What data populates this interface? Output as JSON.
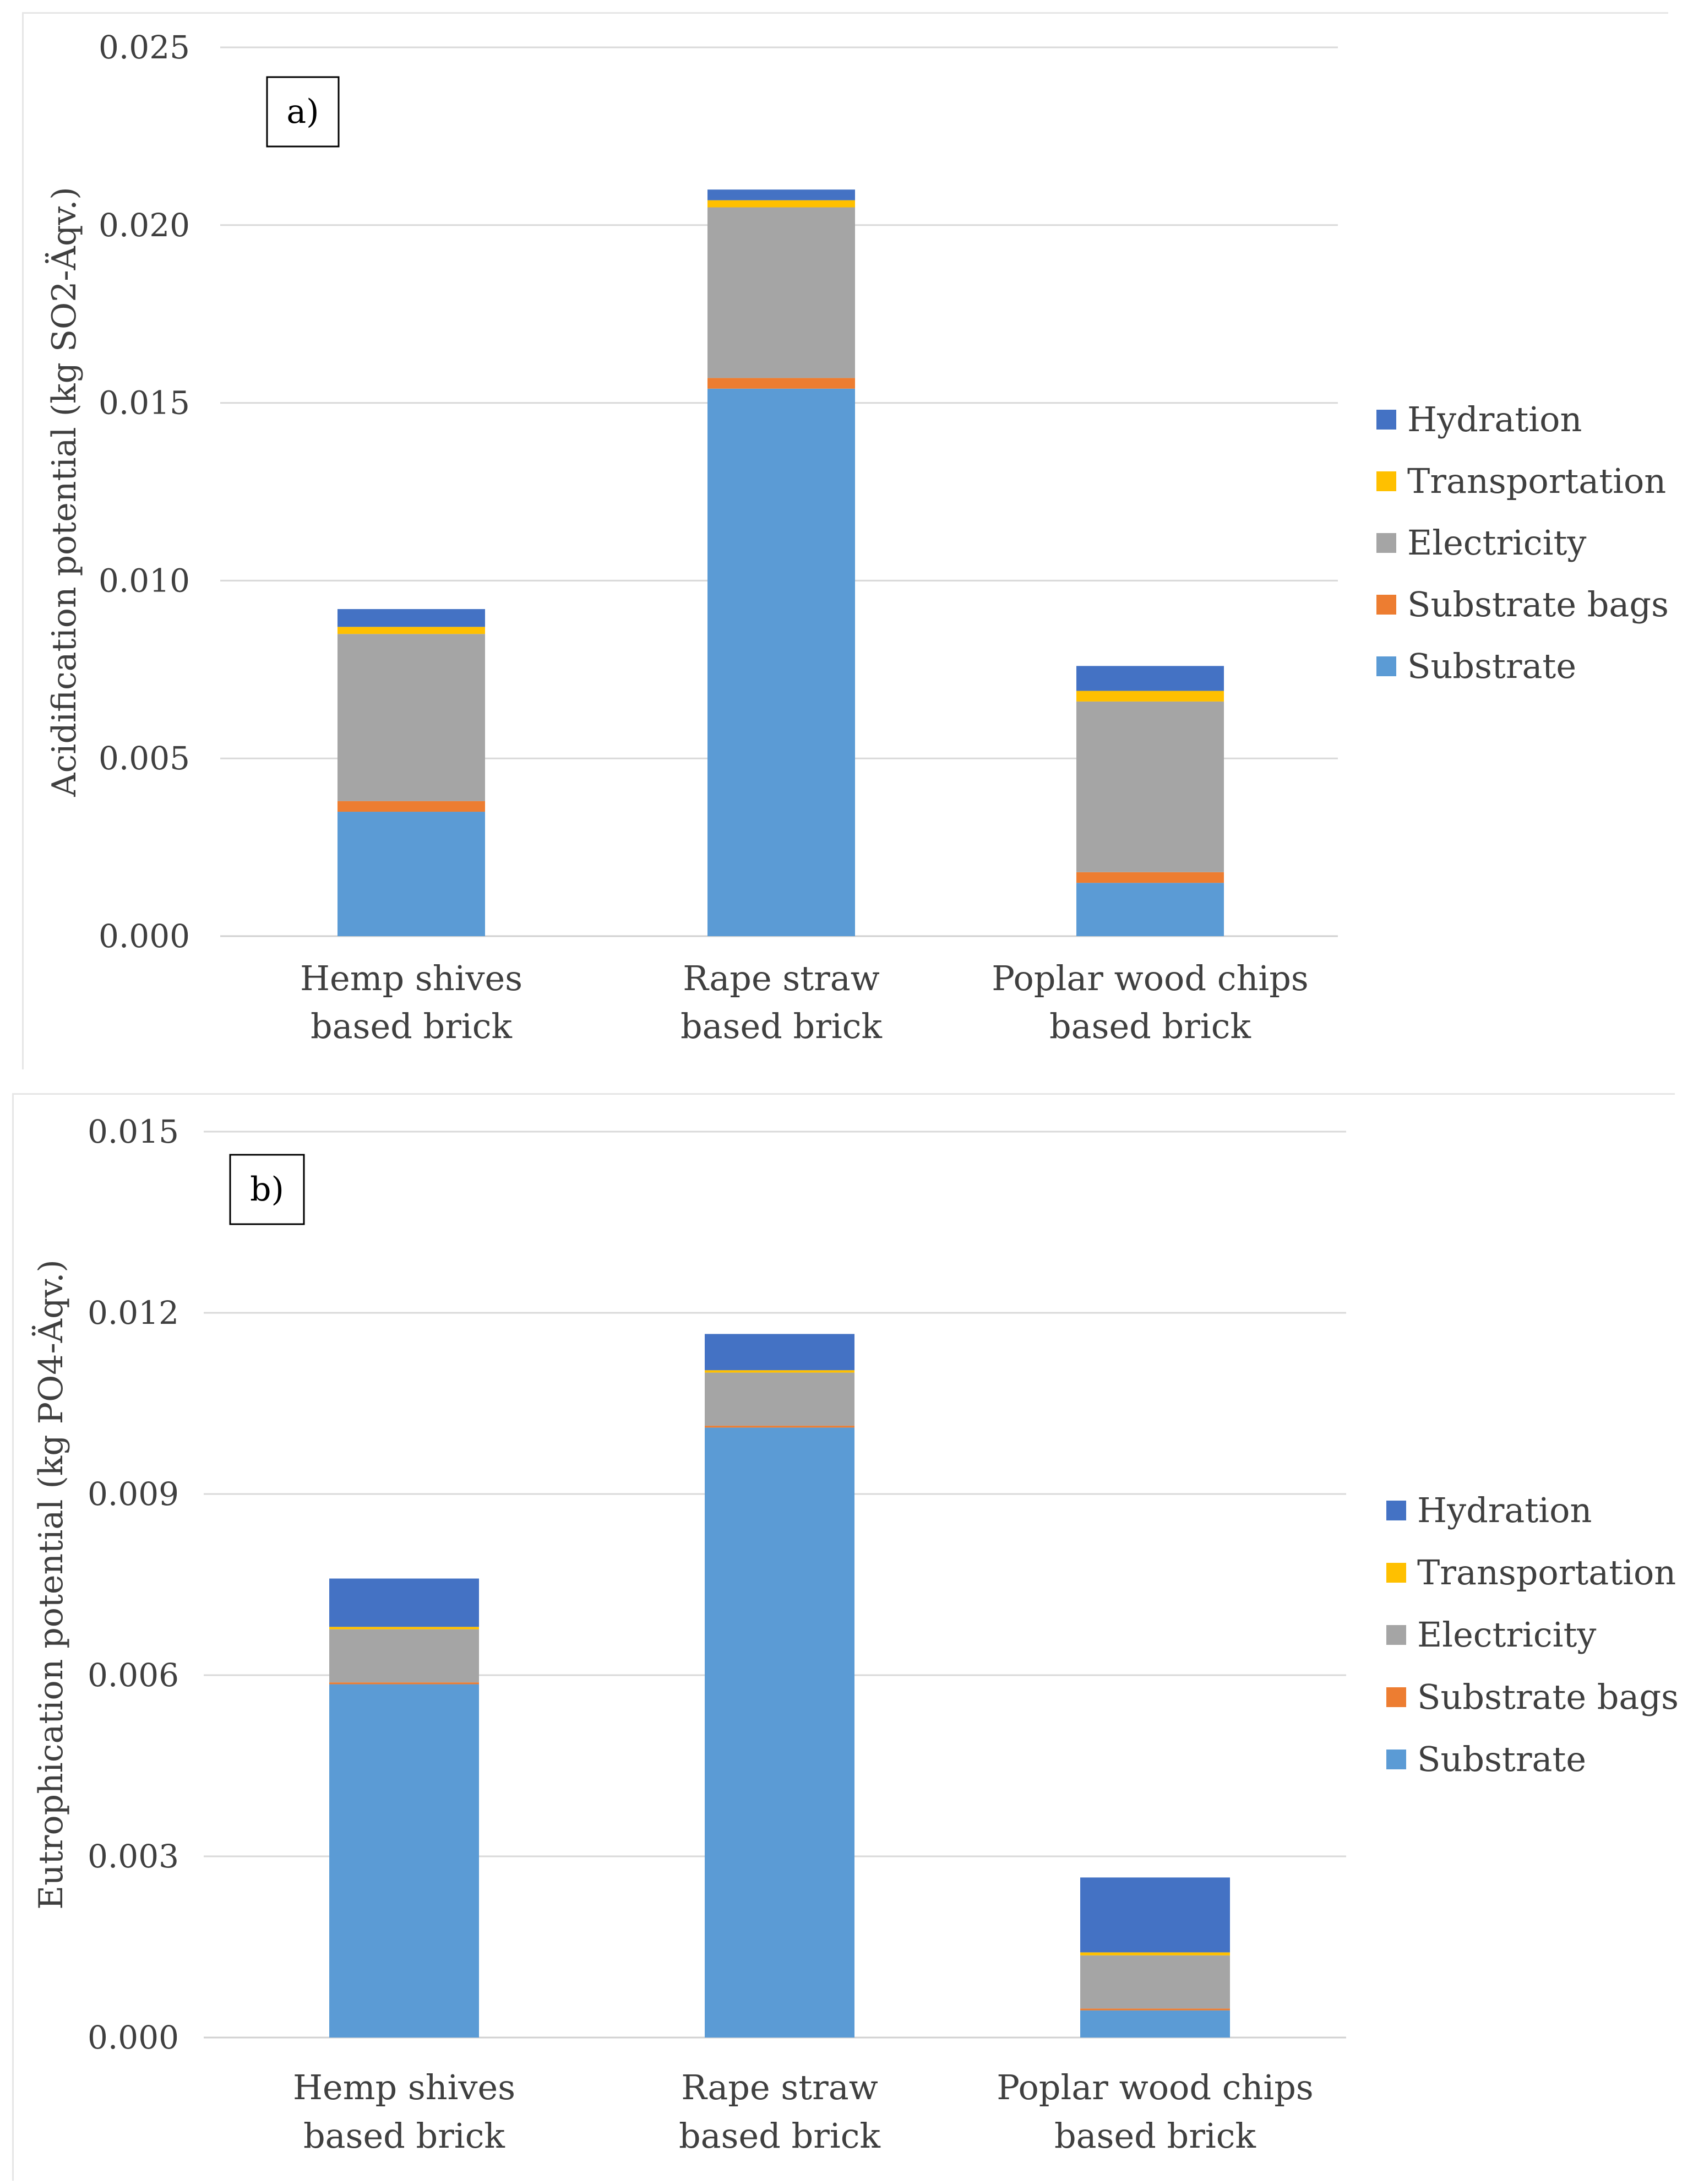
{
  "chart_data": [
    {
      "type": "bar",
      "stacked": true,
      "panel_label": "a)",
      "title": "",
      "xlabel": "",
      "ylabel": "Acidification potential (kg SO2-Äqv.)",
      "ylim": [
        0,
        0.025
      ],
      "yticks": [
        0.0,
        0.005,
        0.01,
        0.015,
        0.02,
        0.025
      ],
      "ytick_labels": [
        "0.000",
        "0.005",
        "0.010",
        "0.015",
        "0.020",
        "0.025"
      ],
      "categories": [
        [
          "Hemp shives",
          "based brick"
        ],
        [
          "Rape straw",
          "based brick"
        ],
        [
          "Poplar wood chips",
          "based brick"
        ]
      ],
      "grid": true,
      "legend_position": "right",
      "series": [
        {
          "name": "Substrate",
          "color": "#5b9bd5",
          "values": [
            0.0035,
            0.0154,
            0.0015
          ]
        },
        {
          "name": "Substrate bags",
          "color": "#ed7d31",
          "values": [
            0.0003,
            0.0003,
            0.0003
          ]
        },
        {
          "name": "Electricity",
          "color": "#a5a5a5",
          "values": [
            0.0047,
            0.0048,
            0.0048
          ]
        },
        {
          "name": "Transportation",
          "color": "#ffc000",
          "values": [
            0.0002,
            0.0002,
            0.0003
          ]
        },
        {
          "name": "Hydration",
          "color": "#4472c4",
          "values": [
            0.0005,
            0.0003,
            0.0007
          ]
        }
      ]
    },
    {
      "type": "bar",
      "stacked": true,
      "panel_label": "b)",
      "title": "",
      "xlabel": "",
      "ylabel": "Eutrophication potential (kg PO4-Äqv.)",
      "ylim": [
        0,
        0.015
      ],
      "yticks": [
        0.0,
        0.003,
        0.006,
        0.009,
        0.012,
        0.015
      ],
      "ytick_labels": [
        "0.000",
        "0.003",
        "0.006",
        "0.009",
        "0.012",
        "0.015"
      ],
      "categories": [
        [
          "Hemp shives",
          "based brick"
        ],
        [
          "Rape straw",
          "based brick"
        ],
        [
          "Poplar wood chips",
          "based brick"
        ]
      ],
      "grid": true,
      "legend_position": "right",
      "series": [
        {
          "name": "Substrate",
          "color": "#5b9bd5",
          "values": [
            0.00585,
            0.0101,
            0.00045
          ]
        },
        {
          "name": "Substrate bags",
          "color": "#ed7d31",
          "values": [
            3e-05,
            3e-05,
            3e-05
          ]
        },
        {
          "name": "Electricity",
          "color": "#a5a5a5",
          "values": [
            0.00088,
            0.00088,
            0.00088
          ]
        },
        {
          "name": "Transportation",
          "color": "#ffc000",
          "values": [
            4e-05,
            4e-05,
            5e-05
          ]
        },
        {
          "name": "Hydration",
          "color": "#4472c4",
          "values": [
            0.0008,
            0.0006,
            0.00124
          ]
        }
      ]
    }
  ]
}
